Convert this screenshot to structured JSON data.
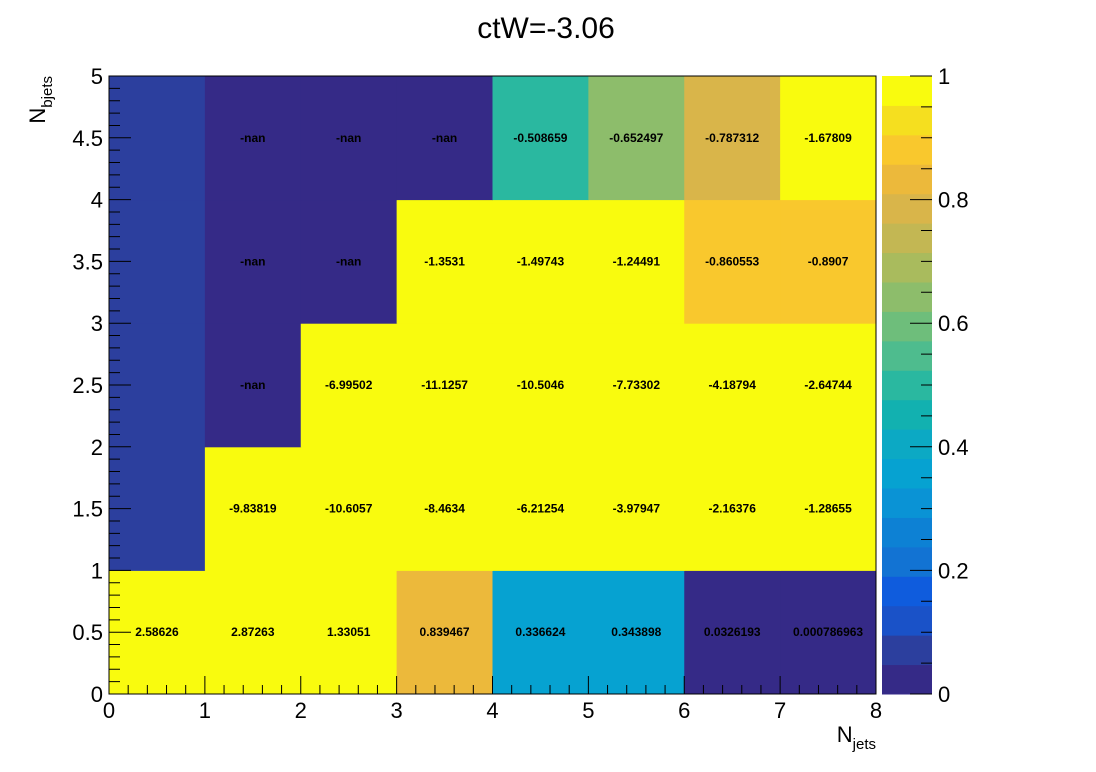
{
  "chart_data": {
    "type": "heatmap",
    "title": "ctW=-3.06",
    "xlabel": {
      "main": "N",
      "sub": "jets"
    },
    "ylabel": {
      "main": "N",
      "sub": "bjets"
    },
    "xlim": [
      0,
      8
    ],
    "ylim": [
      0,
      5
    ],
    "x_ticks": [
      "0",
      "1",
      "2",
      "3",
      "4",
      "5",
      "6",
      "7",
      "8"
    ],
    "y_ticks": [
      "0",
      "0.5",
      "1",
      "1.5",
      "2",
      "2.5",
      "3",
      "3.5",
      "4",
      "4.5",
      "5"
    ],
    "zlim": [
      0,
      1
    ],
    "z_ticks": [
      "0",
      "0.2",
      "0.4",
      "0.6",
      "0.8",
      "1"
    ],
    "x_bins": [
      0,
      1,
      2,
      3,
      4,
      5,
      6,
      7,
      8
    ],
    "y_bins": [
      0,
      1,
      2,
      3,
      4,
      5
    ],
    "cells": [
      {
        "x": 0.5,
        "y": 0.5,
        "z": 1,
        "label": "2.58626"
      },
      {
        "x": 1.5,
        "y": 0.5,
        "z": 1,
        "label": "2.87263"
      },
      {
        "x": 2.5,
        "y": 0.5,
        "z": 1,
        "label": "1.33051"
      },
      {
        "x": 3.5,
        "y": 0.5,
        "z": 0.839467,
        "label": "0.839467"
      },
      {
        "x": 4.5,
        "y": 0.5,
        "z": 0.336624,
        "label": "0.336624"
      },
      {
        "x": 5.5,
        "y": 0.5,
        "z": 0.343898,
        "label": "0.343898"
      },
      {
        "x": 6.5,
        "y": 0.5,
        "z": 0.0326193,
        "label": "0.0326193"
      },
      {
        "x": 7.5,
        "y": 0.5,
        "z": 0.000786963,
        "label": "0.000786963"
      },
      {
        "x": 0.5,
        "y": 1.5,
        "z": 0.06,
        "label": ""
      },
      {
        "x": 1.5,
        "y": 1.5,
        "z": 1,
        "label": "-9.83819"
      },
      {
        "x": 2.5,
        "y": 1.5,
        "z": 1,
        "label": "-10.6057"
      },
      {
        "x": 3.5,
        "y": 1.5,
        "z": 1,
        "label": "-8.4634"
      },
      {
        "x": 4.5,
        "y": 1.5,
        "z": 1,
        "label": "-6.21254"
      },
      {
        "x": 5.5,
        "y": 1.5,
        "z": 1,
        "label": "-3.97947"
      },
      {
        "x": 6.5,
        "y": 1.5,
        "z": 1,
        "label": "-2.16376"
      },
      {
        "x": 7.5,
        "y": 1.5,
        "z": 1,
        "label": "-1.28655"
      },
      {
        "x": 0.5,
        "y": 2.5,
        "z": 0.06,
        "label": ""
      },
      {
        "x": 1.5,
        "y": 2.5,
        "z": 0,
        "label": "-nan"
      },
      {
        "x": 2.5,
        "y": 2.5,
        "z": 1,
        "label": "-6.99502"
      },
      {
        "x": 3.5,
        "y": 2.5,
        "z": 1,
        "label": "-11.1257"
      },
      {
        "x": 4.5,
        "y": 2.5,
        "z": 1,
        "label": "-10.5046"
      },
      {
        "x": 5.5,
        "y": 2.5,
        "z": 1,
        "label": "-7.73302"
      },
      {
        "x": 6.5,
        "y": 2.5,
        "z": 1,
        "label": "-4.18794"
      },
      {
        "x": 7.5,
        "y": 2.5,
        "z": 1,
        "label": "-2.64744"
      },
      {
        "x": 0.5,
        "y": 3.5,
        "z": 0.06,
        "label": ""
      },
      {
        "x": 1.5,
        "y": 3.5,
        "z": 0,
        "label": "-nan"
      },
      {
        "x": 2.5,
        "y": 3.5,
        "z": 0,
        "label": "-nan"
      },
      {
        "x": 3.5,
        "y": 3.5,
        "z": 1,
        "label": "-1.3531"
      },
      {
        "x": 4.5,
        "y": 3.5,
        "z": 1,
        "label": "-1.49743"
      },
      {
        "x": 5.5,
        "y": 3.5,
        "z": 1,
        "label": "-1.24491"
      },
      {
        "x": 6.5,
        "y": 3.5,
        "z": 0.86,
        "label": "-0.860553"
      },
      {
        "x": 7.5,
        "y": 3.5,
        "z": 0.89,
        "label": "-0.8907"
      },
      {
        "x": 0.5,
        "y": 4.5,
        "z": 0.06,
        "label": ""
      },
      {
        "x": 1.5,
        "y": 4.5,
        "z": 0,
        "label": "-nan"
      },
      {
        "x": 2.5,
        "y": 4.5,
        "z": 0,
        "label": "-nan"
      },
      {
        "x": 3.5,
        "y": 4.5,
        "z": 0,
        "label": "-nan"
      },
      {
        "x": 4.5,
        "y": 4.5,
        "z": 0.508659,
        "label": "-0.508659"
      },
      {
        "x": 5.5,
        "y": 4.5,
        "z": 0.652497,
        "label": "-0.652497"
      },
      {
        "x": 6.5,
        "y": 4.5,
        "z": 0.787312,
        "label": "-0.787312"
      },
      {
        "x": 7.5,
        "y": 4.5,
        "z": 1,
        "label": "-1.67809"
      }
    ],
    "palette": [
      "#352a87",
      "#2c3f9e",
      "#1a52c8",
      "#0f5cdd",
      "#1273d3",
      "#0d81d4",
      "#0a93d5",
      "#06a2d1",
      "#0ca9c4",
      "#12b1b0",
      "#2ab8a0",
      "#4ebc8e",
      "#6ebe7b",
      "#8dbd6b",
      "#a9bb5d",
      "#c3b753",
      "#d9b54a",
      "#ecb93b",
      "#f9c82d",
      "#f5df1f",
      "#f9fb0e"
    ]
  }
}
